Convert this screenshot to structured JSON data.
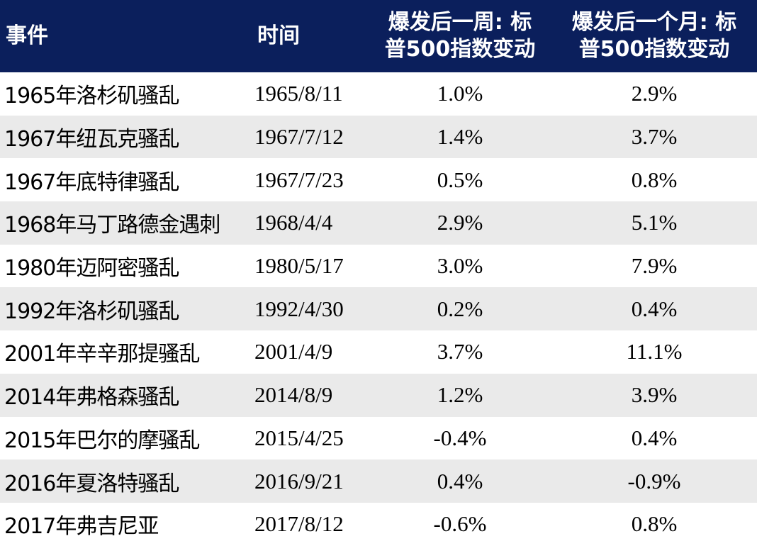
{
  "table": {
    "headers": {
      "event": "事件",
      "time": "时间",
      "week_line1": "爆发后一周: 标",
      "week_line2": "普500指数变动",
      "month_line1": "爆发后一个月: 标",
      "month_line2": "普500指数变动"
    },
    "rows": [
      {
        "event": "1965年洛杉矶骚乱",
        "time": "1965/8/11",
        "week": "1.0%",
        "month": "2.9%"
      },
      {
        "event": "1967年纽瓦克骚乱",
        "time": "1967/7/12",
        "week": "1.4%",
        "month": "3.7%"
      },
      {
        "event": "1967年底特律骚乱",
        "time": "1967/7/23",
        "week": "0.5%",
        "month": "0.8%"
      },
      {
        "event": "1968年马丁路德金遇刺",
        "time": "1968/4/4",
        "week": "2.9%",
        "month": "5.1%"
      },
      {
        "event": "1980年迈阿密骚乱",
        "time": "1980/5/17",
        "week": "3.0%",
        "month": "7.9%"
      },
      {
        "event": "1992年洛杉矶骚乱",
        "time": "1992/4/30",
        "week": "0.2%",
        "month": "0.4%"
      },
      {
        "event": "2001年辛辛那提骚乱",
        "time": "2001/4/9",
        "week": "3.7%",
        "month": "11.1%"
      },
      {
        "event": "2014年弗格森骚乱",
        "time": "2014/8/9",
        "week": "1.2%",
        "month": "3.9%"
      },
      {
        "event": "2015年巴尔的摩骚乱",
        "time": "2015/4/25",
        "week": "-0.4%",
        "month": "0.4%"
      },
      {
        "event": "2016年夏洛特骚乱",
        "time": "2016/9/21",
        "week": "0.4%",
        "month": "-0.9%"
      },
      {
        "event": "2017年弗吉尼亚",
        "time": "2017/8/12",
        "week": "-0.6%",
        "month": "0.8%"
      }
    ]
  },
  "colors": {
    "header_background": "#0b1f5c",
    "header_text": "#ffffff",
    "stripe": "#eaeaea"
  }
}
